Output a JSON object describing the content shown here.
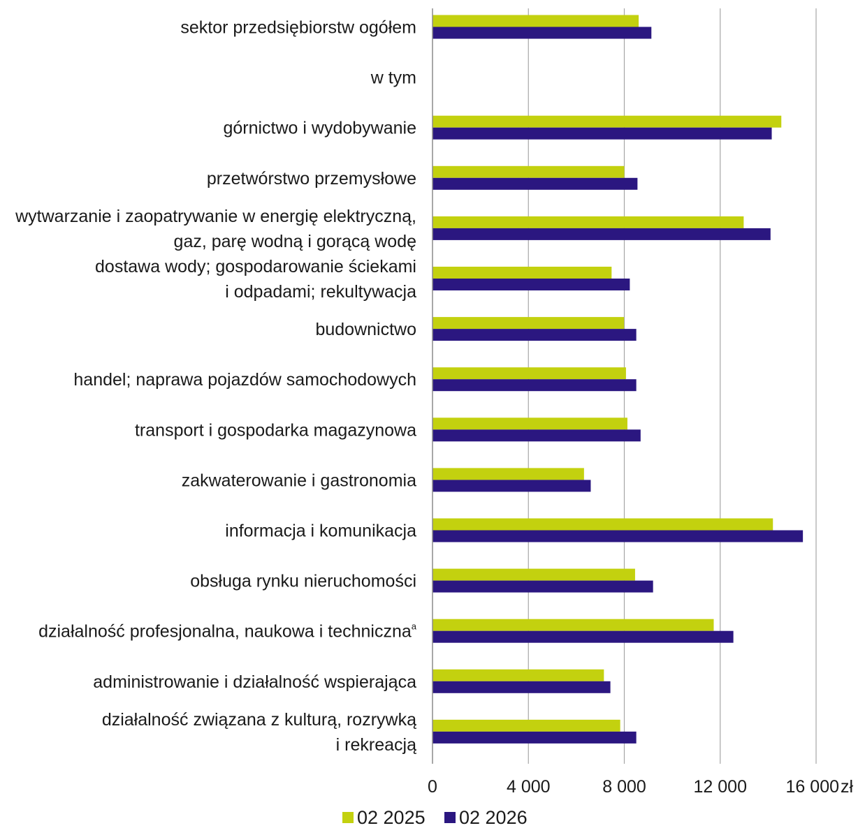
{
  "chart_data": {
    "type": "bar",
    "orientation": "horizontal",
    "categories": [
      "sektor przedsiębiorstw ogółem",
      "w tym",
      "górnictwo i wydobywanie",
      "przetwórstwo przemysłowe",
      [
        "wytwarzanie i zaopatrywanie w energię elektryczną,",
        "gaz, parę wodną i gorącą wodę"
      ],
      [
        "dostawa wody; gospodarowanie ściekami",
        "i odpadami; rekultywacja"
      ],
      "budownictwo",
      "handel; naprawa pojazdów samochodowych",
      "transport i gospodarka magazynowa",
      "zakwaterowanie i gastronomia",
      "informacja i komunikacja",
      "obsługa rynku nieruchomości",
      "działalność profesjonalna, naukowa i techniczna",
      "administrowanie i działalność wspierająca",
      [
        "działalność związana z kulturą, rozrywką",
        "i rekreacją"
      ]
    ],
    "category_superscripts": {
      "12": "a"
    },
    "series": [
      {
        "name": "02 2025",
        "color": "#c3d10f",
        "values": [
          8600,
          null,
          14550,
          8000,
          12980,
          7470,
          7990,
          8070,
          8130,
          6320,
          14200,
          8450,
          11730,
          7150,
          7830
        ]
      },
      {
        "name": "02 2026",
        "color": "#2b1780",
        "values": [
          9130,
          null,
          14150,
          8550,
          14100,
          8230,
          8500,
          8500,
          8680,
          6600,
          15450,
          9200,
          12550,
          7420,
          8500
        ]
      }
    ],
    "xlim": [
      0,
      16000
    ],
    "xticks": [
      0,
      4000,
      8000,
      12000,
      16000
    ],
    "xtick_labels": [
      "0",
      "4 000",
      "8 000",
      "12 000",
      "16 000"
    ],
    "xunit": "zł",
    "grid": true,
    "legend_position": "bottom-center"
  }
}
